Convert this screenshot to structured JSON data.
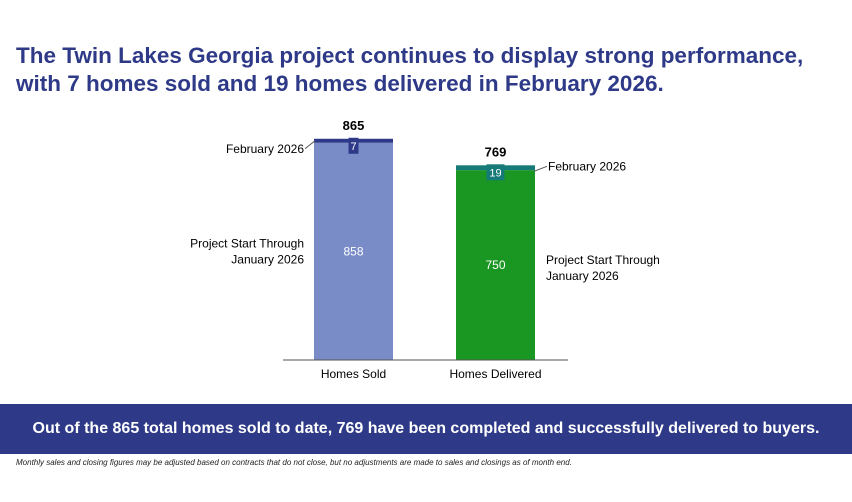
{
  "headline": {
    "line1": "The Twin Lakes Georgia project continues to display strong performance,",
    "line2": "with 7 homes sold and 19 homes delivered in February 2026."
  },
  "chart_data": {
    "type": "bar",
    "stacked": true,
    "categories": [
      "Homes Sold",
      "Homes Delivered"
    ],
    "totals": [
      865,
      769
    ],
    "series": [
      {
        "name": "Project Start Through January 2026",
        "values": [
          858,
          750
        ],
        "colors": [
          "#7a8cc8",
          "#1a9622"
        ]
      },
      {
        "name": "February 2026",
        "values": [
          7,
          19
        ],
        "colors": [
          "#2e3a87",
          "#157a78"
        ]
      }
    ],
    "labels": {
      "sold_base": [
        "Project Start Through",
        "January 2026"
      ],
      "sold_month": "February 2026",
      "delivered_base": [
        "Project Start Through",
        "January 2026"
      ],
      "delivered_month": "February 2026"
    },
    "ylim": [
      0,
      865
    ],
    "grid": false
  },
  "banner": {
    "text": "Out of the 865 total homes sold to date, 769 have been completed and successfully delivered to buyers."
  },
  "footnote": {
    "text": "Monthly sales and closing figures may be adjusted based on contracts that do not close, but no adjustments are made to sales and closings as of month end."
  }
}
